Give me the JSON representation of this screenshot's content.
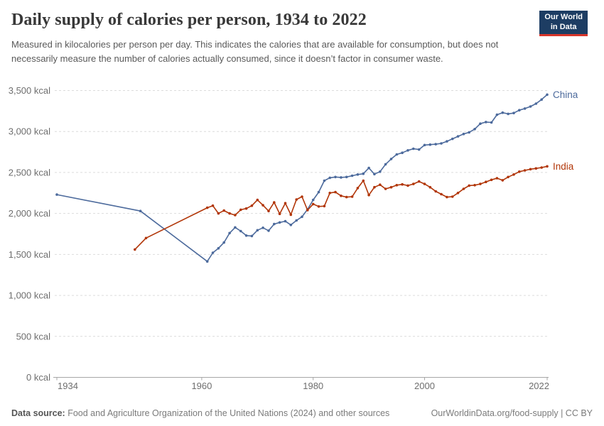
{
  "header": {
    "title": "Daily supply of calories per person, 1934 to 2022",
    "subtitle": "Measured in kilocalories per person per day. This indicates the calories that are available for consumption, but does not necessarily measure the number of calories actually consumed, since it doesn’t factor in consumer waste."
  },
  "logo": {
    "line1": "Our World",
    "line2": "in Data",
    "bg_color": "#1d3d63",
    "accent_color": "#d8352a"
  },
  "chart_data": {
    "type": "line",
    "title": "Daily supply of calories per person, 1934 to 2022",
    "unit": "kcal",
    "xlim": [
      1934,
      2022
    ],
    "ylim": [
      0,
      3500
    ],
    "grid": true,
    "legend": "end-of-line-labels",
    "x_axis": {
      "ticks": [
        1934,
        1960,
        1980,
        2000,
        2022
      ]
    },
    "y_axis": {
      "ticks": [
        {
          "value": 0,
          "label": "0 kcal"
        },
        {
          "value": 500,
          "label": "500 kcal"
        },
        {
          "value": 1000,
          "label": "1,000 kcal"
        },
        {
          "value": 1500,
          "label": "1,500 kcal"
        },
        {
          "value": 2000,
          "label": "2,000 kcal"
        },
        {
          "value": 2500,
          "label": "2,500 kcal"
        },
        {
          "value": 3000,
          "label": "3,000 kcal"
        },
        {
          "value": 3500,
          "label": "3,500 kcal"
        }
      ]
    },
    "series": [
      {
        "name": "China",
        "color": "#4C6A9C",
        "points": [
          [
            1934,
            2230
          ],
          [
            1949,
            2030
          ],
          [
            1961,
            1415
          ],
          [
            1962,
            1520
          ],
          [
            1963,
            1575
          ],
          [
            1964,
            1645
          ],
          [
            1965,
            1760
          ],
          [
            1966,
            1830
          ],
          [
            1967,
            1785
          ],
          [
            1968,
            1730
          ],
          [
            1969,
            1725
          ],
          [
            1970,
            1795
          ],
          [
            1971,
            1825
          ],
          [
            1972,
            1790
          ],
          [
            1973,
            1870
          ],
          [
            1974,
            1890
          ],
          [
            1975,
            1905
          ],
          [
            1976,
            1860
          ],
          [
            1977,
            1915
          ],
          [
            1978,
            1960
          ],
          [
            1979,
            2050
          ],
          [
            1980,
            2165
          ],
          [
            1981,
            2260
          ],
          [
            1982,
            2400
          ],
          [
            1983,
            2435
          ],
          [
            1984,
            2445
          ],
          [
            1985,
            2440
          ],
          [
            1986,
            2445
          ],
          [
            1987,
            2460
          ],
          [
            1988,
            2475
          ],
          [
            1989,
            2485
          ],
          [
            1990,
            2555
          ],
          [
            1991,
            2480
          ],
          [
            1992,
            2510
          ],
          [
            1993,
            2600
          ],
          [
            1994,
            2665
          ],
          [
            1995,
            2720
          ],
          [
            1996,
            2740
          ],
          [
            1997,
            2770
          ],
          [
            1998,
            2790
          ],
          [
            1999,
            2780
          ],
          [
            2000,
            2835
          ],
          [
            2001,
            2840
          ],
          [
            2002,
            2845
          ],
          [
            2003,
            2855
          ],
          [
            2004,
            2880
          ],
          [
            2005,
            2910
          ],
          [
            2006,
            2940
          ],
          [
            2007,
            2970
          ],
          [
            2008,
            2990
          ],
          [
            2009,
            3030
          ],
          [
            2010,
            3095
          ],
          [
            2011,
            3115
          ],
          [
            2012,
            3110
          ],
          [
            2013,
            3205
          ],
          [
            2014,
            3230
          ],
          [
            2015,
            3215
          ],
          [
            2016,
            3225
          ],
          [
            2017,
            3260
          ],
          [
            2018,
            3280
          ],
          [
            2019,
            3305
          ],
          [
            2020,
            3340
          ],
          [
            2021,
            3390
          ],
          [
            2022,
            3450
          ]
        ]
      },
      {
        "name": "India",
        "color": "#B13507",
        "points": [
          [
            1948,
            1560
          ],
          [
            1950,
            1700
          ],
          [
            1961,
            2070
          ],
          [
            1962,
            2095
          ],
          [
            1963,
            2000
          ],
          [
            1964,
            2035
          ],
          [
            1965,
            2000
          ],
          [
            1966,
            1980
          ],
          [
            1967,
            2045
          ],
          [
            1968,
            2060
          ],
          [
            1969,
            2095
          ],
          [
            1970,
            2165
          ],
          [
            1971,
            2100
          ],
          [
            1972,
            2030
          ],
          [
            1973,
            2135
          ],
          [
            1974,
            1995
          ],
          [
            1975,
            2125
          ],
          [
            1976,
            1985
          ],
          [
            1977,
            2170
          ],
          [
            1978,
            2205
          ],
          [
            1979,
            2040
          ],
          [
            1980,
            2115
          ],
          [
            1981,
            2085
          ],
          [
            1982,
            2090
          ],
          [
            1983,
            2250
          ],
          [
            1984,
            2260
          ],
          [
            1985,
            2215
          ],
          [
            1986,
            2200
          ],
          [
            1987,
            2205
          ],
          [
            1988,
            2310
          ],
          [
            1989,
            2400
          ],
          [
            1990,
            2225
          ],
          [
            1991,
            2320
          ],
          [
            1992,
            2350
          ],
          [
            1993,
            2300
          ],
          [
            1994,
            2320
          ],
          [
            1995,
            2345
          ],
          [
            1996,
            2355
          ],
          [
            1997,
            2340
          ],
          [
            1998,
            2360
          ],
          [
            1999,
            2390
          ],
          [
            2000,
            2360
          ],
          [
            2001,
            2320
          ],
          [
            2002,
            2270
          ],
          [
            2003,
            2235
          ],
          [
            2004,
            2200
          ],
          [
            2005,
            2205
          ],
          [
            2006,
            2250
          ],
          [
            2007,
            2300
          ],
          [
            2008,
            2340
          ],
          [
            2009,
            2345
          ],
          [
            2010,
            2360
          ],
          [
            2011,
            2385
          ],
          [
            2012,
            2410
          ],
          [
            2013,
            2430
          ],
          [
            2014,
            2405
          ],
          [
            2015,
            2445
          ],
          [
            2016,
            2475
          ],
          [
            2017,
            2510
          ],
          [
            2018,
            2525
          ],
          [
            2019,
            2540
          ],
          [
            2020,
            2550
          ],
          [
            2021,
            2560
          ],
          [
            2022,
            2575
          ]
        ]
      }
    ]
  },
  "footer": {
    "source_label": "Data source:",
    "source_text": "Food and Agriculture Organization of the United Nations (2024) and other sources",
    "right_text": "OurWorldinData.org/food-supply | CC BY"
  }
}
